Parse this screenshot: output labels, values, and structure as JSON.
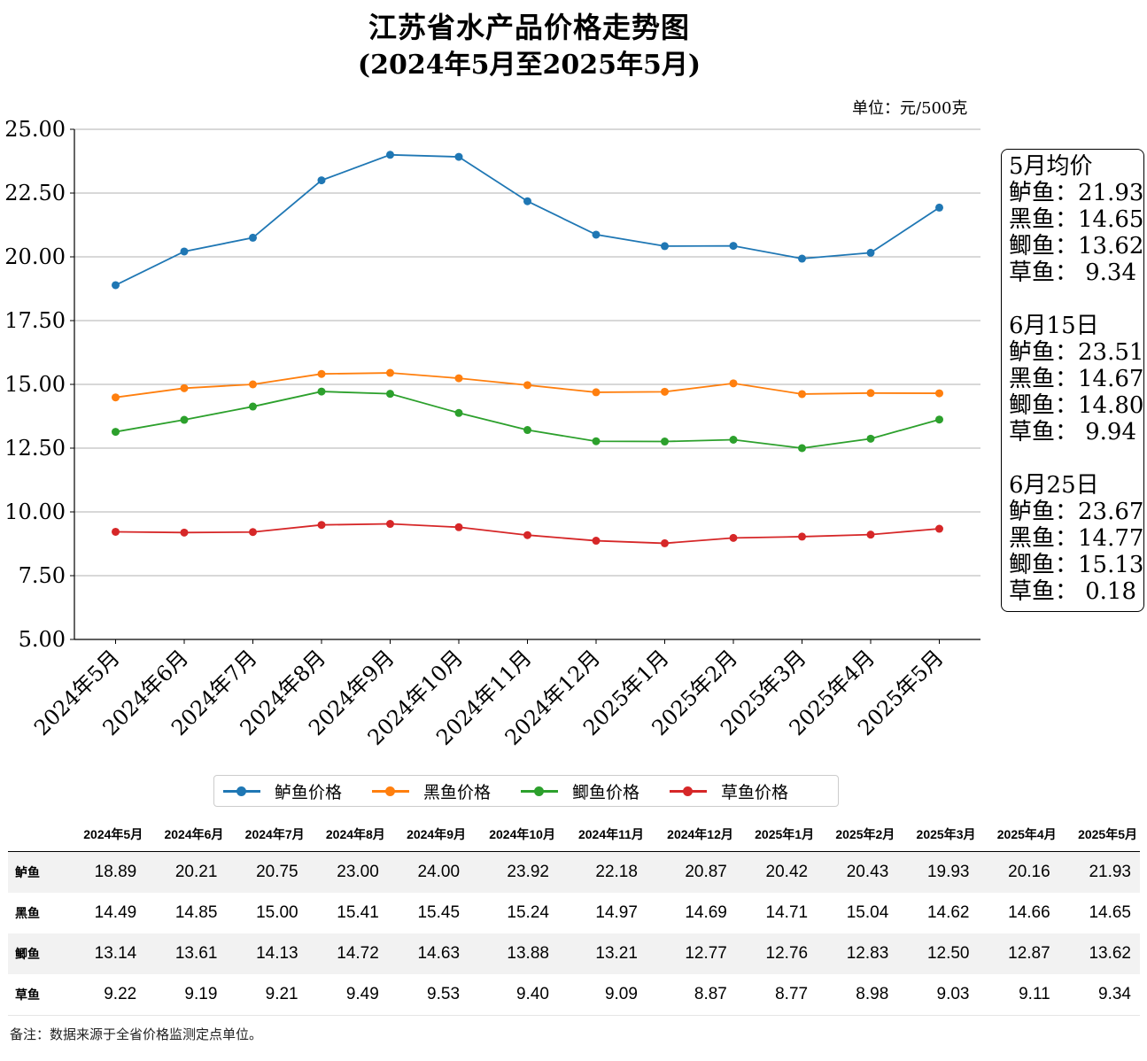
{
  "title_line1": "江苏省水产品价格走势图",
  "title_line2": "(2024年5月至2025年5月)",
  "unit": "单位：元/500克",
  "chart_data": {
    "type": "line",
    "categories": [
      "2024年5月",
      "2024年6月",
      "2024年7月",
      "2024年8月",
      "2024年9月",
      "2024年10月",
      "2024年11月",
      "2024年12月",
      "2025年1月",
      "2025年2月",
      "2025年3月",
      "2025年4月",
      "2025年5月"
    ],
    "series": [
      {
        "name": "鲈鱼价格",
        "color": "#1f77b4",
        "values": [
          18.89,
          20.21,
          20.75,
          23.0,
          24.0,
          23.92,
          22.18,
          20.87,
          20.42,
          20.43,
          19.93,
          20.16,
          21.93
        ]
      },
      {
        "name": "黑鱼价格",
        "color": "#ff7f0e",
        "values": [
          14.49,
          14.85,
          15.0,
          15.41,
          15.45,
          15.24,
          14.97,
          14.69,
          14.71,
          15.04,
          14.62,
          14.66,
          14.65
        ]
      },
      {
        "name": "鲫鱼价格",
        "color": "#2ca02c",
        "values": [
          13.14,
          13.61,
          14.13,
          14.72,
          14.63,
          13.88,
          13.21,
          12.77,
          12.76,
          12.83,
          12.5,
          12.87,
          13.62
        ]
      },
      {
        "name": "草鱼价格",
        "color": "#d62728",
        "values": [
          9.22,
          9.19,
          9.21,
          9.49,
          9.53,
          9.4,
          9.09,
          8.87,
          8.77,
          8.98,
          9.03,
          9.11,
          9.34
        ]
      }
    ],
    "yticks": [
      "5.00",
      "7.50",
      "10.00",
      "12.50",
      "15.00",
      "17.50",
      "20.00",
      "22.50",
      "25.00"
    ],
    "ylim": [
      5,
      25
    ],
    "grid": "horizontal",
    "legend_position": "bottom"
  },
  "side_box": [
    {
      "heading": "5月均价",
      "rows": [
        [
          "鲈鱼：",
          "21.93"
        ],
        [
          "黑鱼：",
          "14.65"
        ],
        [
          "鲫鱼：",
          "13.62"
        ],
        [
          "草鱼：",
          "9.34"
        ]
      ]
    },
    {
      "heading": "6月15日",
      "rows": [
        [
          "鲈鱼：",
          "23.51"
        ],
        [
          "黑鱼：",
          "14.67"
        ],
        [
          "鲫鱼：",
          "14.80"
        ],
        [
          "草鱼：",
          "9.94"
        ]
      ]
    },
    {
      "heading": "6月25日",
      "rows": [
        [
          "鲈鱼：",
          "23.67"
        ],
        [
          "黑鱼：",
          "14.77"
        ],
        [
          "鲫鱼：",
          "15.13"
        ],
        [
          "草鱼：",
          "0.18"
        ]
      ]
    }
  ],
  "table": {
    "headers": [
      "",
      "2024年5月",
      "2024年6月",
      "2024年7月",
      "2024年8月",
      "2024年9月",
      "2024年10月",
      "2024年11月",
      "2024年12月",
      "2025年1月",
      "2025年2月",
      "2025年3月",
      "2025年4月",
      "2025年5月"
    ],
    "rows": [
      {
        "label": "鲈鱼",
        "values": [
          "18.89",
          "20.21",
          "20.75",
          "23.00",
          "24.00",
          "23.92",
          "22.18",
          "20.87",
          "20.42",
          "20.43",
          "19.93",
          "20.16",
          "21.93"
        ]
      },
      {
        "label": "黑鱼",
        "values": [
          "14.49",
          "14.85",
          "15.00",
          "15.41",
          "15.45",
          "15.24",
          "14.97",
          "14.69",
          "14.71",
          "15.04",
          "14.62",
          "14.66",
          "14.65"
        ]
      },
      {
        "label": "鲫鱼",
        "values": [
          "13.14",
          "13.61",
          "14.13",
          "14.72",
          "14.63",
          "13.88",
          "13.21",
          "12.77",
          "12.76",
          "12.83",
          "12.50",
          "12.87",
          "13.62"
        ]
      },
      {
        "label": "草鱼",
        "values": [
          "9.22",
          "9.19",
          "9.21",
          "9.49",
          "9.53",
          "9.40",
          "9.09",
          "8.87",
          "8.77",
          "8.98",
          "9.03",
          "9.11",
          "9.34"
        ]
      }
    ]
  },
  "note": "备注：数据来源于全省价格监测定点单位。"
}
